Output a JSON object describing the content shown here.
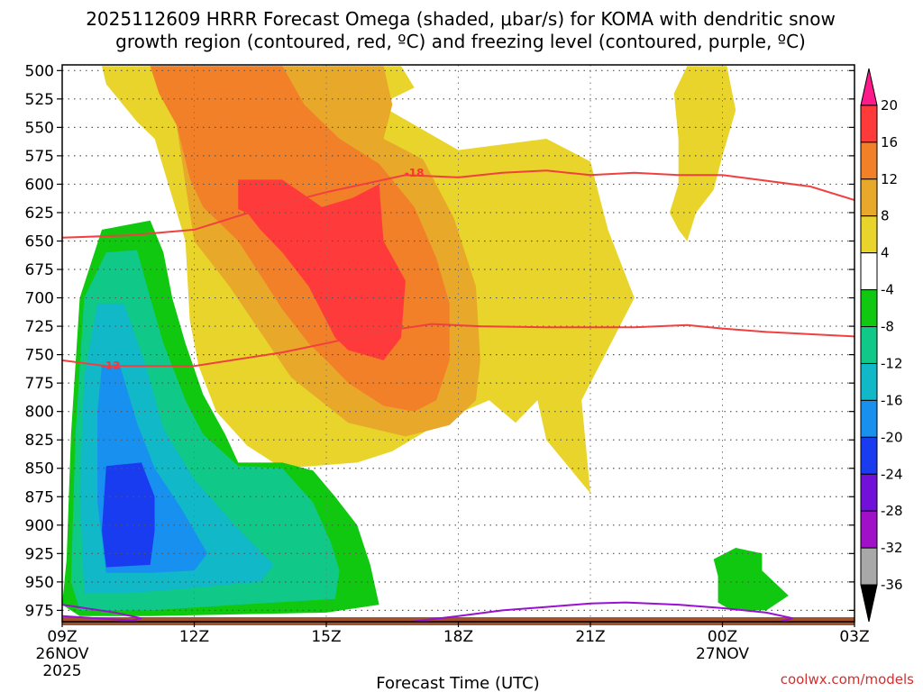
{
  "chart_data": {
    "type": "time-height cross-section",
    "title_lines": [
      "2025112609 HRRR Forecast Omega (shaded, μbar/s) for KOMA with dendritic snow",
      "growth region (contoured, red, ºC) and freezing level (contoured, purple, ºC)"
    ],
    "xlabel": "Forecast Time (UTC)",
    "credit": "coolwx.com/models",
    "x_hours": [
      0,
      3,
      6,
      9,
      12,
      15,
      18
    ],
    "xlim": [
      0,
      18
    ],
    "x_ticks": [
      {
        "h": 0,
        "lines": [
          "09Z",
          "26NOV",
          "2025"
        ]
      },
      {
        "h": 3,
        "lines": [
          "12Z"
        ]
      },
      {
        "h": 6,
        "lines": [
          "15Z"
        ]
      },
      {
        "h": 9,
        "lines": [
          "18Z"
        ]
      },
      {
        "h": 12,
        "lines": [
          "21Z"
        ]
      },
      {
        "h": 15,
        "lines": [
          "00Z",
          "27NOV"
        ]
      },
      {
        "h": 18,
        "lines": [
          "03Z"
        ]
      }
    ],
    "y_ticks": [
      500,
      525,
      550,
      575,
      600,
      625,
      650,
      675,
      700,
      725,
      750,
      775,
      800,
      825,
      850,
      875,
      900,
      925,
      950,
      975
    ],
    "ylim": [
      495,
      985
    ],
    "colorbar": {
      "labels": [
        "20",
        "16",
        "12",
        "8",
        "4",
        "-4",
        "-8",
        "-12",
        "-16",
        "-20",
        "-24",
        "-28",
        "-32",
        "-36"
      ],
      "colors": [
        "#ff1a8c",
        "#ff3a3a",
        "#f28028",
        "#e8a82a",
        "#e8d42a",
        "#ffffff",
        "#10c810",
        "#10c888",
        "#10b8c8",
        "#1890f0",
        "#1a3cf0",
        "#7010d8",
        "#a010c8",
        "#a8a8a8",
        "#000000"
      ]
    },
    "shaded_regions": [
      {
        "level": "4 to 8",
        "color": "#e8d42a",
        "points": [
          [
            0.9,
            496
          ],
          [
            7.7,
            496
          ],
          [
            8.0,
            515
          ],
          [
            7.2,
            530
          ],
          [
            9.0,
            570
          ],
          [
            11.0,
            560
          ],
          [
            12.0,
            580
          ],
          [
            12.4,
            640
          ],
          [
            13.0,
            700
          ],
          [
            11.8,
            790
          ],
          [
            12.0,
            872
          ],
          [
            11.0,
            825
          ],
          [
            10.8,
            790
          ],
          [
            10.3,
            810
          ],
          [
            9.7,
            790
          ],
          [
            8.8,
            805
          ],
          [
            7.5,
            835
          ],
          [
            6.7,
            845
          ],
          [
            5.0,
            850
          ],
          [
            4.2,
            830
          ],
          [
            3.5,
            800
          ],
          [
            3.1,
            760
          ],
          [
            2.9,
            720
          ],
          [
            2.8,
            650
          ],
          [
            2.1,
            560
          ],
          [
            1.7,
            545
          ],
          [
            1.0,
            512
          ]
        ]
      },
      {
        "level": "4 to 8",
        "color": "#e8d42a",
        "points": [
          [
            14.2,
            496
          ],
          [
            15.1,
            496
          ],
          [
            15.3,
            535
          ],
          [
            15.0,
            575
          ],
          [
            14.8,
            605
          ],
          [
            14.4,
            625
          ],
          [
            14.2,
            650
          ],
          [
            14.0,
            640
          ],
          [
            13.8,
            625
          ],
          [
            14.0,
            600
          ],
          [
            14.0,
            560
          ],
          [
            13.9,
            520
          ]
        ]
      },
      {
        "level": "8 to 12",
        "color": "#e8a82a",
        "points": [
          [
            2.0,
            496
          ],
          [
            7.3,
            496
          ],
          [
            7.5,
            530
          ],
          [
            7.3,
            560
          ],
          [
            8.2,
            578
          ],
          [
            8.9,
            630
          ],
          [
            9.4,
            690
          ],
          [
            9.5,
            755
          ],
          [
            9.4,
            790
          ],
          [
            8.8,
            812
          ],
          [
            7.8,
            822
          ],
          [
            6.5,
            810
          ],
          [
            5.2,
            770
          ],
          [
            4.5,
            730
          ],
          [
            3.8,
            690
          ],
          [
            3.0,
            650
          ],
          [
            2.8,
            600
          ],
          [
            2.6,
            548
          ],
          [
            2.2,
            520
          ]
        ]
      },
      {
        "level": "12 to 16",
        "color": "#f28028",
        "points": [
          [
            2.0,
            496
          ],
          [
            5.0,
            496
          ],
          [
            5.5,
            530
          ],
          [
            6.3,
            560
          ],
          [
            7.2,
            582
          ],
          [
            8.0,
            620
          ],
          [
            8.5,
            665
          ],
          [
            8.8,
            705
          ],
          [
            8.8,
            755
          ],
          [
            8.5,
            790
          ],
          [
            8.0,
            800
          ],
          [
            7.3,
            795
          ],
          [
            6.5,
            775
          ],
          [
            6.0,
            755
          ],
          [
            5.6,
            740
          ],
          [
            5.0,
            710
          ],
          [
            4.5,
            680
          ],
          [
            4.0,
            650
          ],
          [
            3.2,
            620
          ],
          [
            2.9,
            595
          ],
          [
            2.6,
            548
          ],
          [
            2.2,
            520
          ]
        ]
      },
      {
        "level": "16 to 20",
        "color": "#ff3a3a",
        "points": [
          [
            4.0,
            596
          ],
          [
            5.0,
            596
          ],
          [
            5.9,
            620
          ],
          [
            6.6,
            612
          ],
          [
            7.2,
            600
          ],
          [
            7.3,
            650
          ],
          [
            7.8,
            685
          ],
          [
            7.7,
            735
          ],
          [
            7.3,
            755
          ],
          [
            6.5,
            746
          ],
          [
            6.2,
            735
          ],
          [
            5.6,
            690
          ],
          [
            5.0,
            660
          ],
          [
            4.5,
            640
          ],
          [
            4.2,
            625
          ],
          [
            4.0,
            622
          ]
        ]
      },
      {
        "level": "-4 to -8",
        "color": "#10c810",
        "points": [
          [
            0.9,
            640
          ],
          [
            2.0,
            632
          ],
          [
            2.3,
            660
          ],
          [
            2.5,
            700
          ],
          [
            2.8,
            740
          ],
          [
            3.2,
            785
          ],
          [
            3.7,
            820
          ],
          [
            4.0,
            845
          ],
          [
            5.0,
            845
          ],
          [
            5.7,
            852
          ],
          [
            6.2,
            875
          ],
          [
            6.7,
            900
          ],
          [
            7.0,
            935
          ],
          [
            7.2,
            970
          ],
          [
            6.0,
            977
          ],
          [
            2.0,
            980
          ],
          [
            0.4,
            980
          ],
          [
            0.0,
            970
          ],
          [
            0.1,
            930
          ],
          [
            0.2,
            820
          ],
          [
            0.4,
            700
          ]
        ]
      },
      {
        "level": "-4 to -8",
        "color": "#10c810",
        "points": [
          [
            14.8,
            930
          ],
          [
            15.3,
            920
          ],
          [
            15.9,
            925
          ],
          [
            15.9,
            940
          ],
          [
            16.5,
            962
          ],
          [
            16.0,
            975
          ],
          [
            15.2,
            975
          ],
          [
            14.9,
            968
          ],
          [
            14.9,
            945
          ]
        ]
      },
      {
        "level": "-8 to -12",
        "color": "#10c888",
        "points": [
          [
            1.0,
            660
          ],
          [
            1.7,
            658
          ],
          [
            2.0,
            700
          ],
          [
            2.3,
            740
          ],
          [
            2.8,
            790
          ],
          [
            3.2,
            820
          ],
          [
            4.0,
            848
          ],
          [
            5.0,
            850
          ],
          [
            5.7,
            880
          ],
          [
            6.1,
            915
          ],
          [
            6.3,
            940
          ],
          [
            6.2,
            965
          ],
          [
            4.0,
            970
          ],
          [
            2.0,
            975
          ],
          [
            0.4,
            975
          ],
          [
            0.2,
            950
          ],
          [
            0.3,
            820
          ],
          [
            0.5,
            700
          ]
        ]
      },
      {
        "level": "-12 to -16",
        "color": "#10b8c8",
        "points": [
          [
            0.8,
            705
          ],
          [
            1.4,
            705
          ],
          [
            1.9,
            760
          ],
          [
            2.3,
            815
          ],
          [
            3.0,
            860
          ],
          [
            3.8,
            895
          ],
          [
            4.8,
            935
          ],
          [
            4.5,
            950
          ],
          [
            3.0,
            955
          ],
          [
            1.5,
            960
          ],
          [
            0.5,
            960
          ],
          [
            0.4,
            870
          ],
          [
            0.5,
            770
          ]
        ]
      },
      {
        "level": "-16 to -20",
        "color": "#1890f0",
        "points": [
          [
            0.9,
            760
          ],
          [
            1.3,
            758
          ],
          [
            1.7,
            810
          ],
          [
            2.1,
            850
          ],
          [
            2.7,
            885
          ],
          [
            3.3,
            925
          ],
          [
            3.0,
            940
          ],
          [
            2.0,
            942
          ],
          [
            1.0,
            942
          ],
          [
            0.8,
            880
          ],
          [
            0.8,
            800
          ]
        ]
      },
      {
        "level": "-20 to -24",
        "color": "#1a3cf0",
        "points": [
          [
            1.0,
            848
          ],
          [
            1.8,
            845
          ],
          [
            2.1,
            875
          ],
          [
            2.1,
            905
          ],
          [
            2.0,
            935
          ],
          [
            1.0,
            937
          ],
          [
            0.9,
            905
          ]
        ]
      }
    ],
    "dgz_contours": [
      {
        "label": "-18",
        "label_at": [
          8.0,
          590
        ],
        "points": [
          [
            0,
            647
          ],
          [
            1.5,
            645
          ],
          [
            3.0,
            640
          ],
          [
            4.5,
            622
          ],
          [
            6.0,
            607
          ],
          [
            7.8,
            592
          ],
          [
            9.0,
            594
          ],
          [
            10.0,
            590
          ],
          [
            11.0,
            588
          ],
          [
            12.0,
            592
          ],
          [
            13.0,
            590
          ],
          [
            14.0,
            592
          ],
          [
            15.0,
            592
          ],
          [
            17.0,
            602
          ],
          [
            18,
            614
          ]
        ]
      },
      {
        "label": "-12",
        "label_at": [
          1.1,
          760
        ],
        "points": [
          [
            0,
            755
          ],
          [
            1.0,
            760
          ],
          [
            3.0,
            760
          ],
          [
            5.0,
            748
          ],
          [
            6.0,
            740
          ],
          [
            7.2,
            730
          ],
          [
            8.4,
            723
          ],
          [
            9.5,
            725
          ],
          [
            11.0,
            726
          ],
          [
            13.0,
            726
          ],
          [
            14.2,
            724
          ],
          [
            15.0,
            727
          ],
          [
            16.0,
            730
          ],
          [
            18,
            734
          ]
        ]
      }
    ],
    "freezing_level": [
      {
        "points": [
          [
            0,
            970
          ],
          [
            1.2,
            977
          ],
          [
            1.8,
            982
          ],
          [
            1.6,
            984
          ],
          [
            0.8,
            982
          ],
          [
            0,
            980
          ]
        ]
      },
      {
        "points": [
          [
            7.5,
            987
          ],
          [
            9.0,
            980
          ],
          [
            10.0,
            975
          ],
          [
            11.0,
            972
          ],
          [
            12.0,
            969
          ],
          [
            12.8,
            968
          ],
          [
            14.0,
            970
          ],
          [
            15.0,
            973
          ],
          [
            16.0,
            977
          ],
          [
            16.6,
            982
          ],
          [
            16.3,
            985
          ],
          [
            15.0,
            986
          ],
          [
            14.3,
            987
          ],
          [
            13.5,
            987
          ],
          [
            11.0,
            986
          ],
          [
            9.0,
            985
          ],
          [
            7.5,
            987
          ]
        ]
      }
    ],
    "freezing_level_label": "freezing level (purple)",
    "ground_color": "#a0522d"
  }
}
